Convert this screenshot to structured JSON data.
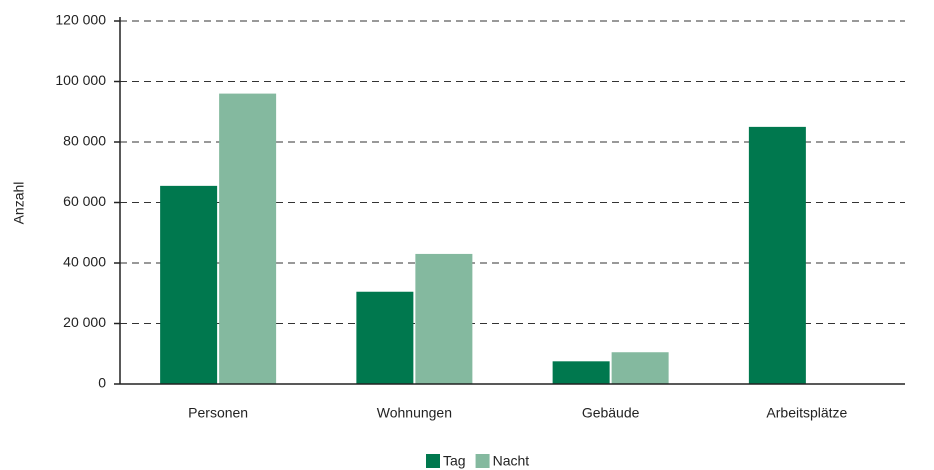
{
  "chart_data": {
    "type": "bar",
    "y_label": "Anzahl",
    "categories": [
      "Personen",
      "Wohnungen",
      "Gebäude",
      "Arbeitsplätze"
    ],
    "series": [
      {
        "name": "Tag",
        "color": "#00784e",
        "values": [
          65500,
          30500,
          7500,
          85000
        ]
      },
      {
        "name": "Nacht",
        "color": "#84b99f",
        "values": [
          96000,
          43000,
          10500,
          null
        ]
      }
    ],
    "ylim": [
      0,
      120000
    ],
    "yticks": [
      0,
      {
        "value": 20000,
        "label": "20 000"
      },
      {
        "value": 40000,
        "label": "40 000"
      },
      {
        "value": 60000,
        "label": "60 000"
      },
      {
        "value": 80000,
        "label": "80 000"
      },
      {
        "value": 100000,
        "label": "100 000"
      },
      {
        "value": 120000,
        "label": "120 000"
      }
    ],
    "grid": true,
    "legend": "bottom"
  }
}
